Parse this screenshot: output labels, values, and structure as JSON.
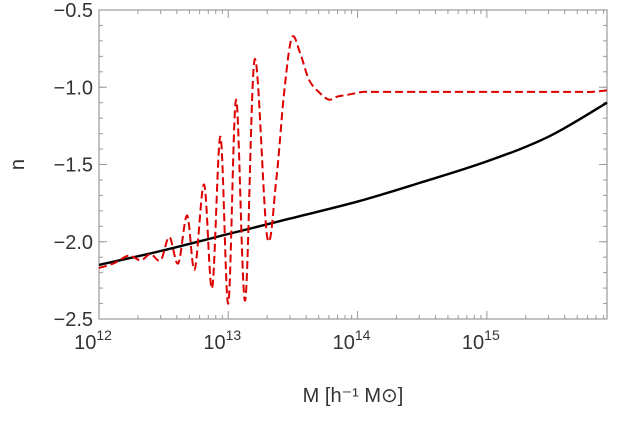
{
  "chart_data": {
    "type": "line",
    "xscale": "log",
    "xlim": [
      1000000000000.0,
      8500000000000000.0
    ],
    "ylim": [
      -2.5,
      -0.5
    ],
    "xlabel": "M [h⁻¹ M⊙]",
    "ylabel": "n",
    "title": "",
    "x_ticks": [
      {
        "value": 1000000000000.0,
        "base": "10",
        "exp": "12"
      },
      {
        "value": 10000000000000.0,
        "base": "10",
        "exp": "13"
      },
      {
        "value": 100000000000000.0,
        "base": "10",
        "exp": "14"
      },
      {
        "value": 1000000000000000.0,
        "base": "10",
        "exp": "15"
      }
    ],
    "y_ticks": [
      {
        "value": -2.5,
        "label": "−2.5"
      },
      {
        "value": -2.0,
        "label": "−2.0"
      },
      {
        "value": -1.5,
        "label": "−1.5"
      },
      {
        "value": -1.0,
        "label": "−1.0"
      },
      {
        "value": -0.5,
        "label": "−0.5"
      }
    ],
    "series": [
      {
        "color": "#000000",
        "style": "solid",
        "x": [
          1000000000000.0,
          3000000000000.0,
          10000000000000.0,
          30000000000000.0,
          100000000000000.0,
          300000000000000.0,
          1000000000000000.0,
          3000000000000000.0,
          8500000000000000.0
        ],
        "y": [
          -2.15,
          -2.06,
          -1.95,
          -1.85,
          -1.74,
          -1.62,
          -1.48,
          -1.32,
          -1.1
        ]
      },
      {
        "color": "#dd0000",
        "style": "dashed",
        "x": [
          1000000000000.0,
          1300000000000.0,
          1700000000000.0,
          2100000000000.0,
          2500000000000.0,
          3000000000000.0,
          3500000000000.0,
          4100000000000.0,
          4800000000000.0,
          5500000000000.0,
          6500000000000.0,
          7500000000000.0,
          8700000000000.0,
          10000000000000.0,
          11500000000000.0,
          13500000000000.0,
          16000000000000.0,
          20000000000000.0,
          23500000000000.0,
          27000000000000.0,
          31000000000000.0,
          36000000000000.0,
          42000000000000.0,
          50000000000000.0,
          60000000000000.0,
          70000000000000.0,
          82000000000000.0,
          95000000000000.0,
          110000000000000.0,
          130000000000000.0,
          160000000000000.0,
          220000000000000.0,
          300000000000000.0,
          380000000000000.0,
          460000000000000.0,
          540000000000000.0,
          650000000000000.0,
          800000000000000.0,
          1050000000000000.0,
          1300000000000000.0,
          1600000000000000.0,
          2000000000000000.0,
          3000000000000000.0,
          4000000000000000.0,
          5000000000000000.0,
          6500000000000000.0,
          8500000000000000.0
        ],
        "y": [
          -2.17,
          -2.14,
          -2.09,
          -2.12,
          -2.08,
          -2.12,
          -1.97,
          -2.14,
          -1.83,
          -2.18,
          -1.63,
          -2.3,
          -1.32,
          -2.4,
          -1.08,
          -2.38,
          -0.82,
          -1.97,
          -1.6,
          -1.04,
          -0.68,
          -0.78,
          -0.95,
          -1.03,
          -1.08,
          -1.06,
          -1.05,
          -1.04,
          -1.03,
          -1.03,
          -1.03,
          -1.03,
          -1.03,
          -1.03,
          -1.03,
          -1.03,
          -1.03,
          -1.03,
          -1.03,
          -1.03,
          -1.03,
          -1.03,
          -1.03,
          -1.03,
          -1.03,
          -1.03,
          -1.02
        ]
      }
    ]
  }
}
